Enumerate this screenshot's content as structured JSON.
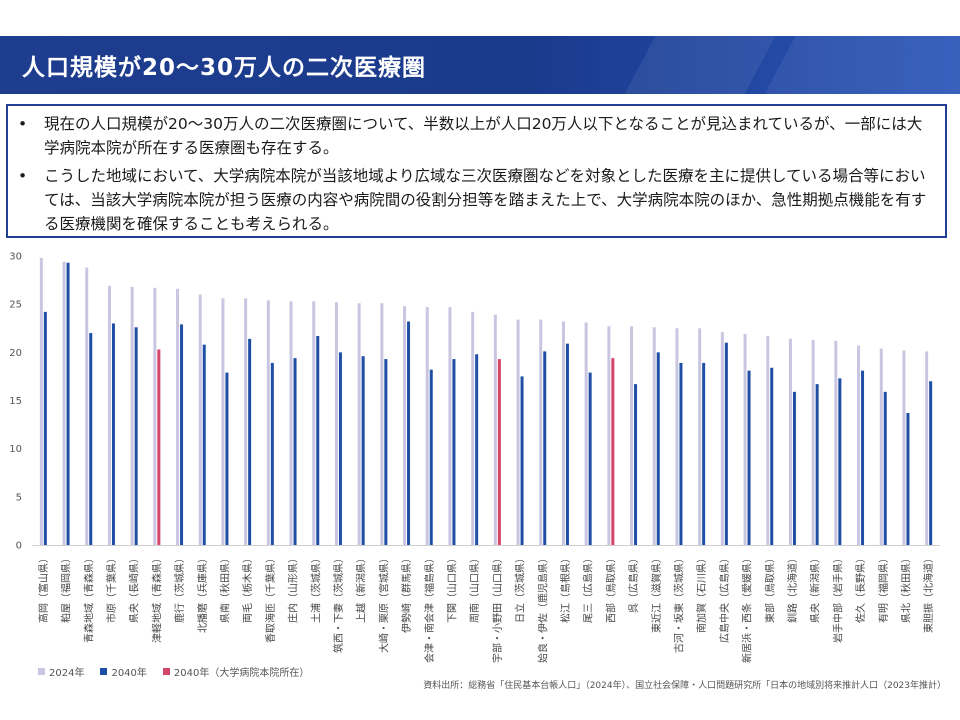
{
  "header": {
    "title": "人口規模が20～30万人の二次医療圏"
  },
  "bullets": [
    {
      "mark": "•",
      "text": "現在の人口規模が20～30万人の二次医療圏について、半数以上が人口20万人以下となることが見込まれているが、一部には大学病院本院が所在する医療圏も存在する。"
    },
    {
      "mark": "•",
      "text": "こうした地域において、大学病院本院が当該地域より広域な三次医療圏などを対象とした医療を主に提供している場合等においては、当該大学病院本院が担う医療の内容や病院間の役割分担等を踏まえた上で、大学病院本院のほか、急性期拠点機能を有する医療機関を確保することも考えられる。"
    }
  ],
  "legend": [
    {
      "label": "2024年",
      "color": "#c9c6e2"
    },
    {
      "label": "2040年",
      "color": "#1f4fa5"
    },
    {
      "label": "2040年（大学病院本院所在）",
      "color": "#d4456a"
    }
  ],
  "source": "資料出所：総務省「住民基本台帳人口」（2024年）、国立社会保障・人口問題研究所「日本の地域別将来推計人口（2023年推計）",
  "chart_data": {
    "type": "bar",
    "ylim": [
      0,
      30
    ],
    "yticks": [
      "0",
      "5",
      "10",
      "15",
      "20",
      "25",
      "30"
    ],
    "grid": false,
    "legend_position": "bottom-left",
    "colors": {
      "2024": "#c9c6e2",
      "2040": "#1f4fa5",
      "2040_univ": "#d4456a"
    },
    "categories": [
      "高岡（富山県）",
      "粕屋（福岡県）",
      "青森地域（青森県）",
      "市原（千葉県）",
      "県央（長崎県）",
      "津軽地域（青森県）",
      "鹿行（茨城県）",
      "北播磨（兵庫県）",
      "県南（秋田県）",
      "両毛（栃木県）",
      "香取海匝（千葉県）",
      "庄内（山形県）",
      "土浦（茨城県）",
      "筑西・下妻（茨城県）",
      "上越（新潟県）",
      "大崎・栗原（宮城県）",
      "伊勢崎（群馬県）",
      "会津・南会津（福島県）",
      "下関（山口県）",
      "周南（山口県）",
      "宇部・小野田（山口県）",
      "日立（茨城県）",
      "姶良・伊佐（鹿児島県）",
      "松江（島根県）",
      "尾三（広島県）",
      "西部（鳥取県）",
      "呉（広島県）",
      "東近江（滋賀県）",
      "古河・坂東（茨城県）",
      "南加賀（石川県）",
      "広島中央（広島県）",
      "新居浜・西条（愛媛県）",
      "東部（鳥取県）",
      "釧路（北海道）",
      "県央（新潟県）",
      "岩手中部（岩手県）",
      "佐久（長野県）",
      "有明（福岡県）",
      "県北（秋田県）",
      "東胆振（北海道）"
    ],
    "series": [
      {
        "name": "2024年",
        "values": [
          29.8,
          29.4,
          28.8,
          26.9,
          26.8,
          26.7,
          26.6,
          26.0,
          25.6,
          25.6,
          25.4,
          25.3,
          25.3,
          25.2,
          25.1,
          25.1,
          24.8,
          24.7,
          24.7,
          24.2,
          23.9,
          23.4,
          23.4,
          23.2,
          23.1,
          22.7,
          22.7,
          22.6,
          22.5,
          22.5,
          22.1,
          21.9,
          21.7,
          21.4,
          21.3,
          21.2,
          20.7,
          20.4,
          20.2,
          20.1
        ]
      },
      {
        "name": "2040年",
        "values": [
          24.2,
          29.3,
          22.0,
          23.0,
          22.6,
          20.3,
          22.9,
          20.8,
          17.9,
          21.4,
          18.9,
          19.4,
          21.7,
          20.0,
          19.6,
          19.3,
          23.2,
          18.2,
          19.3,
          19.8,
          19.3,
          17.5,
          20.1,
          20.9,
          17.9,
          19.4,
          16.7,
          20.0,
          18.9,
          18.9,
          21.0,
          18.1,
          18.4,
          15.9,
          16.7,
          17.3,
          18.1,
          15.9,
          13.7,
          17.0
        ]
      }
    ],
    "university_hospital_2040": [
      5,
      20,
      25
    ]
  }
}
